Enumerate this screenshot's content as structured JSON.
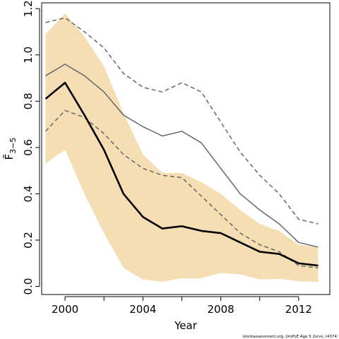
{
  "chart_data": {
    "type": "line",
    "xlabel": "Year",
    "ylabel": "F̄",
    "ylabel_sub": "3−5",
    "xlim": [
      1998.8,
      2013.6
    ],
    "ylim": [
      -0.035,
      1.225
    ],
    "x_ticks": [
      2000,
      2004,
      2008,
      2012
    ],
    "x_minor_ticks": [
      2002,
      2006,
      2010
    ],
    "y_ticks": [
      0.0,
      0.2,
      0.4,
      0.6,
      0.8,
      1.0,
      1.2
    ],
    "y_tick_labels": [
      "0.0",
      "0.2",
      "0.4",
      "0.6",
      "0.8",
      "1.0",
      "1.2"
    ],
    "band": {
      "color": "#f5deb3",
      "x": [
        1999,
        2000,
        2001,
        2002,
        2003,
        2004,
        2005,
        2006,
        2007,
        2008,
        2009,
        2010,
        2011,
        2012,
        2013
      ],
      "upper": [
        1.09,
        1.18,
        1.08,
        0.95,
        0.75,
        0.57,
        0.49,
        0.49,
        0.45,
        0.4,
        0.33,
        0.27,
        0.24,
        0.18,
        0.17
      ],
      "lower": [
        0.53,
        0.59,
        0.4,
        0.23,
        0.08,
        0.03,
        0.02,
        0.035,
        0.035,
        0.058,
        0.052,
        0.03,
        0.033,
        0.022,
        0.02
      ]
    },
    "series": [
      {
        "style": "bold",
        "color": "#000000",
        "dash": false,
        "width": 2.6,
        "values": [
          0.81,
          0.88,
          0.74,
          0.59,
          0.4,
          0.3,
          0.25,
          0.26,
          0.24,
          0.23,
          0.19,
          0.15,
          0.14,
          0.1,
          0.09
        ]
      },
      {
        "style": "thin",
        "color": "#666666",
        "dash": false,
        "width": 1.5,
        "values": [
          0.91,
          0.96,
          0.91,
          0.84,
          0.74,
          0.69,
          0.65,
          0.67,
          0.62,
          0.51,
          0.4,
          0.33,
          0.27,
          0.19,
          0.17
        ]
      },
      {
        "style": "dashed-upper",
        "color": "#666666",
        "dash": true,
        "width": 1.5,
        "values": [
          1.14,
          1.16,
          1.1,
          1.03,
          0.92,
          0.86,
          0.84,
          0.88,
          0.84,
          0.71,
          0.58,
          0.48,
          0.4,
          0.29,
          0.27
        ]
      },
      {
        "style": "dashed-lower",
        "color": "#666666",
        "dash": true,
        "width": 1.5,
        "values": [
          0.67,
          0.76,
          0.73,
          0.66,
          0.57,
          0.51,
          0.48,
          0.47,
          0.39,
          0.31,
          0.23,
          0.18,
          0.15,
          0.09,
          0.08
        ]
      }
    ]
  },
  "footnote": "stockassessment.org, JimPLE Age 5 2srvs, r4374"
}
